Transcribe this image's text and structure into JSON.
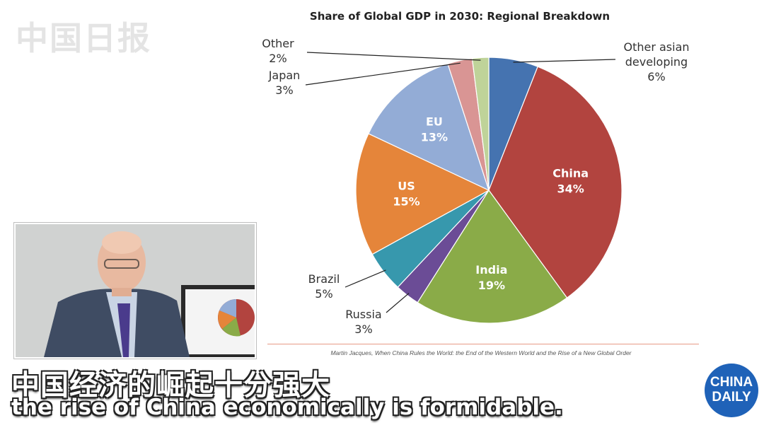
{
  "watermark": "中国日报",
  "chart_data": {
    "type": "pie",
    "title": "Share of Global GDP in 2030: Regional Breakdown",
    "categories": [
      "Other asian developing",
      "China",
      "India",
      "Russia",
      "Brazil",
      "US",
      "EU",
      "Japan",
      "Other"
    ],
    "values": [
      6,
      34,
      19,
      3,
      5,
      15,
      13,
      3,
      2
    ],
    "value_labels": [
      "6%",
      "34%",
      "19%",
      "3%",
      "5%",
      "15%",
      "13%",
      "3%",
      "2%"
    ],
    "colors": [
      "#4573b0",
      "#b2443f",
      "#8aab48",
      "#6b4c96",
      "#3798ad",
      "#e5853a",
      "#93acd6",
      "#d99594",
      "#bfd399"
    ],
    "legend": "none"
  },
  "source": "Martin Jacques, When China Rules the World: the End of the Western World and the Rise of a New Global Order",
  "subtitle": {
    "chinese": "中国经济的崛起十分强大",
    "english": "the rise of China economically is formidable."
  },
  "logo": {
    "line1": "CHINA",
    "line2": "DAILY"
  }
}
